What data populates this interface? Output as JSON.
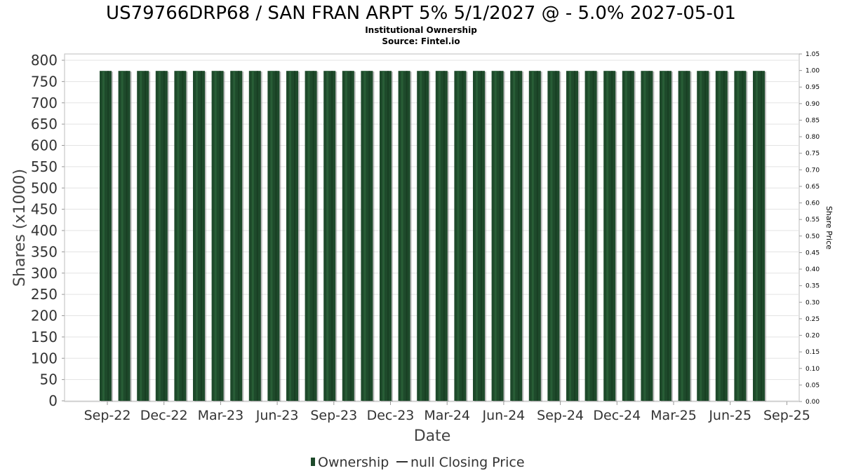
{
  "chart_data": {
    "type": "bar",
    "title": "US79766DRP68 / SAN FRAN ARPT 5% 5/1/2027 @ - 5.0% 2027-05-01",
    "subtitle": "Institutional Ownership",
    "source": "Source: Fintel.io",
    "xlabel": "Date",
    "ylabel": "Shares (x1000)",
    "y2label": "Share Price",
    "ylim": [
      0,
      820
    ],
    "y2lim": [
      0,
      1.05
    ],
    "yticks": [
      0,
      50,
      100,
      150,
      200,
      250,
      300,
      350,
      400,
      450,
      500,
      550,
      600,
      650,
      700,
      750,
      800
    ],
    "y2ticks": [
      "0.00",
      "0.05",
      "0.10",
      "0.15",
      "0.20",
      "0.25",
      "0.30",
      "0.35",
      "0.40",
      "0.45",
      "0.50",
      "0.55",
      "0.60",
      "0.65",
      "0.70",
      "0.75",
      "0.80",
      "0.85",
      "0.90",
      "0.95",
      "1.00",
      "1.05"
    ],
    "xticks": [
      "Sep-22",
      "Dec-22",
      "Mar-23",
      "Jun-23",
      "Sep-23",
      "Dec-23",
      "Mar-24",
      "Jun-24",
      "Sep-24",
      "Dec-24",
      "Mar-25",
      "Jun-25",
      "Sep-25"
    ],
    "grid": true,
    "bar_color": "#1e4a2b",
    "legend": [
      {
        "name": "Ownership",
        "kind": "bar",
        "color": "#1e4a2b"
      },
      {
        "name": "null Closing Price",
        "kind": "line",
        "color": "#333333"
      }
    ],
    "series": [
      {
        "name": "Ownership",
        "values": [
          775,
          775,
          775,
          775,
          775,
          775,
          775,
          775,
          775,
          775,
          775,
          775,
          775,
          775,
          775,
          775,
          775,
          775,
          775,
          775,
          775,
          775,
          775,
          775,
          775,
          775,
          775,
          775,
          775,
          775,
          775,
          775,
          775,
          775,
          775,
          775
        ]
      }
    ]
  }
}
